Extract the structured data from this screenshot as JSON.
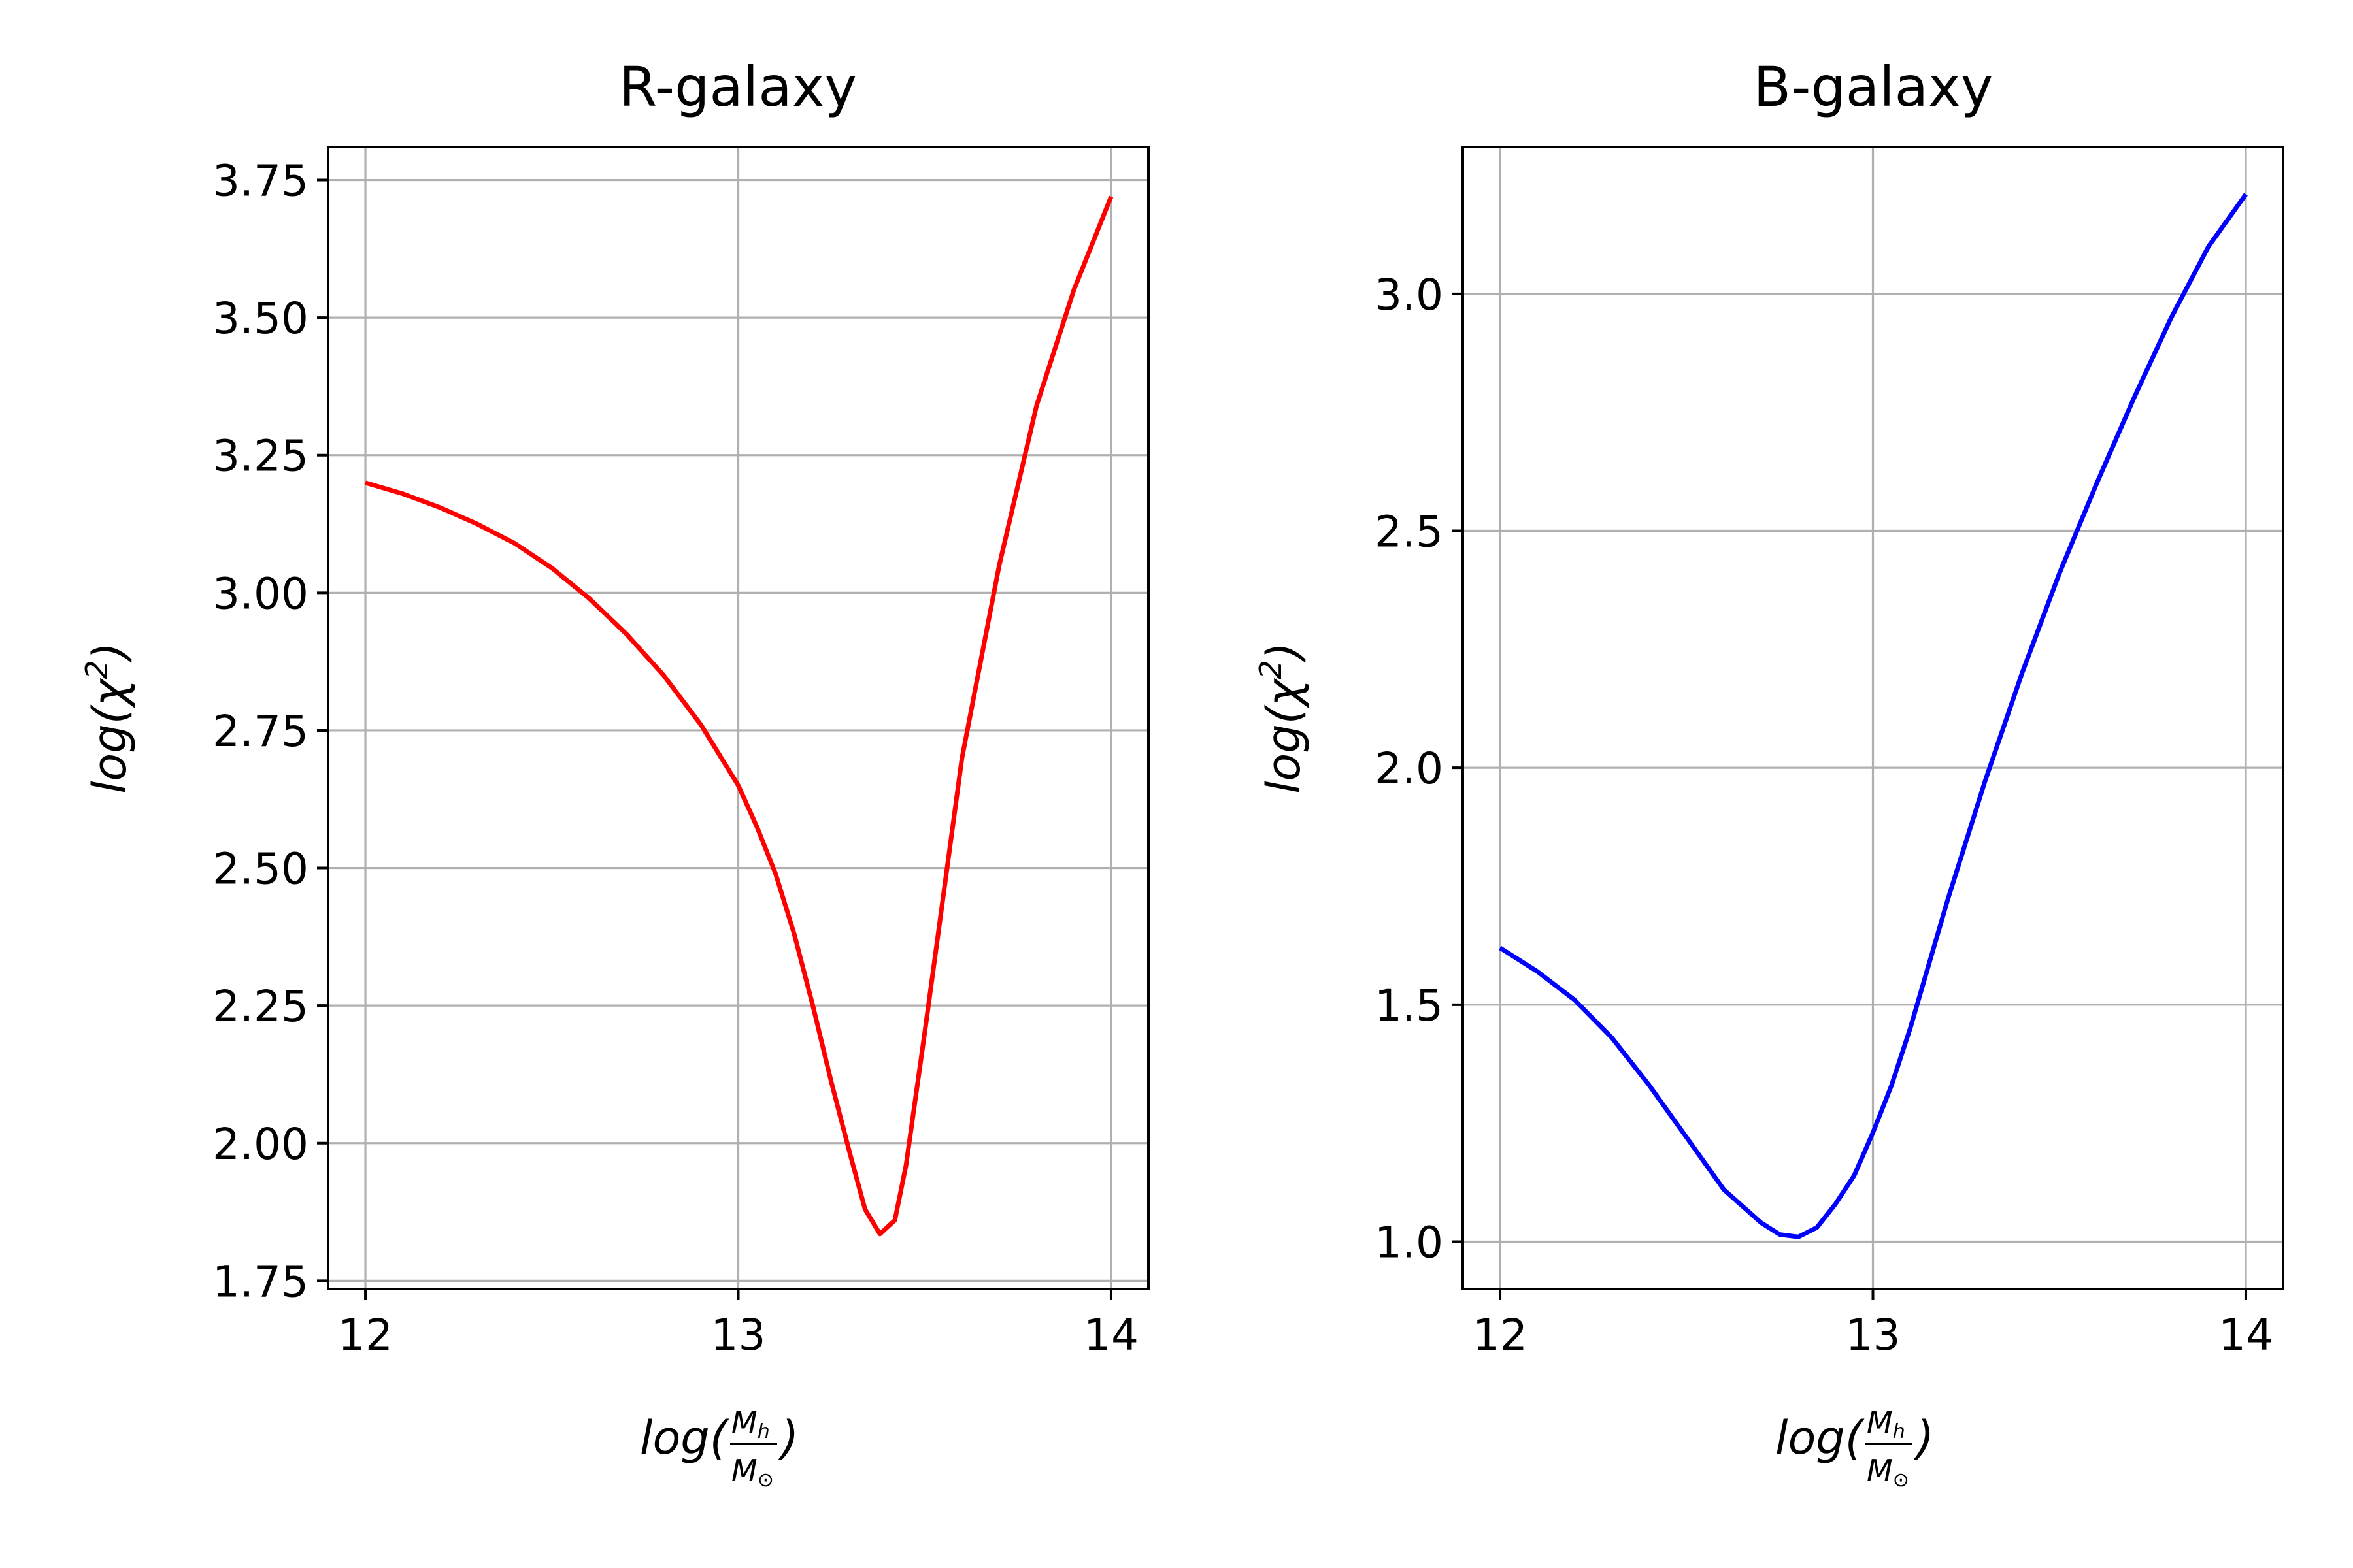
{
  "chart_data": [
    {
      "type": "line",
      "title": "R-galaxy",
      "xlabel": "log(M_h/M_⊙)",
      "ylabel": "log(χ²)",
      "xlim": [
        11.9,
        14.1
      ],
      "ylim": [
        1.735,
        3.81
      ],
      "grid": true,
      "xticks": [
        12,
        13,
        14
      ],
      "xtick_labels": [
        "12",
        "13",
        "14"
      ],
      "yticks": [
        1.75,
        2.0,
        2.25,
        2.5,
        2.75,
        3.0,
        3.25,
        3.5,
        3.75
      ],
      "ytick_labels": [
        "1.75",
        "2.00",
        "2.25",
        "2.50",
        "2.75",
        "3.00",
        "3.25",
        "3.50",
        "3.75"
      ],
      "series": [
        {
          "color": "#ff0000",
          "x": [
            12.0,
            12.1,
            12.2,
            12.3,
            12.4,
            12.5,
            12.6,
            12.7,
            12.8,
            12.9,
            13.0,
            13.05,
            13.1,
            13.15,
            13.2,
            13.25,
            13.3,
            13.34,
            13.38,
            13.42,
            13.45,
            13.5,
            13.55,
            13.6,
            13.7,
            13.8,
            13.9,
            14.0
          ],
          "y": [
            3.2,
            3.18,
            3.155,
            3.125,
            3.09,
            3.045,
            2.99,
            2.925,
            2.85,
            2.76,
            2.65,
            2.575,
            2.49,
            2.38,
            2.25,
            2.11,
            1.98,
            1.88,
            1.835,
            1.86,
            1.96,
            2.2,
            2.45,
            2.7,
            3.05,
            3.34,
            3.55,
            3.72
          ]
        }
      ]
    },
    {
      "type": "line",
      "title": "B-galaxy",
      "xlabel": "log(M_h/M_⊙)",
      "ylabel": "log(χ²)",
      "xlim": [
        11.9,
        14.1
      ],
      "ylim": [
        0.9,
        3.31
      ],
      "grid": true,
      "xticks": [
        12,
        13,
        14
      ],
      "xtick_labels": [
        "12",
        "13",
        "14"
      ],
      "yticks": [
        1.0,
        1.5,
        2.0,
        2.5,
        3.0
      ],
      "ytick_labels": [
        "1.0",
        "1.5",
        "2.0",
        "2.5",
        "3.0"
      ],
      "series": [
        {
          "color": "#0000ff",
          "x": [
            12.0,
            12.1,
            12.2,
            12.3,
            12.4,
            12.5,
            12.6,
            12.7,
            12.75,
            12.8,
            12.85,
            12.9,
            12.95,
            13.0,
            13.05,
            13.1,
            13.2,
            13.3,
            13.4,
            13.5,
            13.6,
            13.7,
            13.8,
            13.9,
            14.0
          ],
          "y": [
            1.62,
            1.57,
            1.51,
            1.43,
            1.33,
            1.22,
            1.11,
            1.04,
            1.015,
            1.01,
            1.03,
            1.08,
            1.14,
            1.23,
            1.33,
            1.45,
            1.72,
            1.97,
            2.2,
            2.41,
            2.6,
            2.78,
            2.95,
            3.1,
            3.21
          ]
        }
      ]
    }
  ]
}
